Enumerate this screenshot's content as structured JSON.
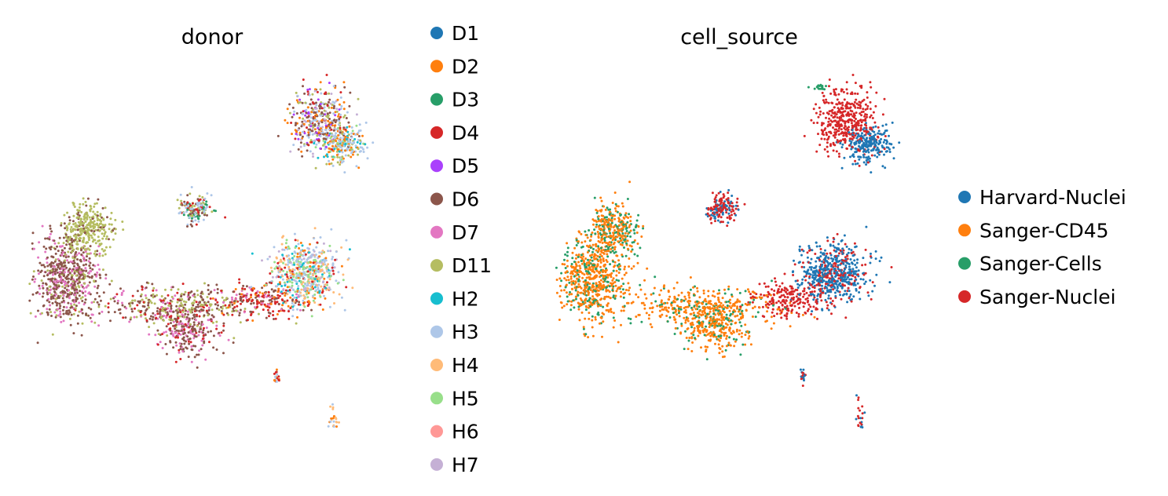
{
  "chart_data": [
    {
      "type": "scatter",
      "title": "donor",
      "xlabel": "",
      "ylabel": "",
      "axes_visible": false,
      "grid": false,
      "legend_placement": "right",
      "series": [
        {
          "name": "D1",
          "color": "#1f77b4"
        },
        {
          "name": "D2",
          "color": "#ff7f0e"
        },
        {
          "name": "D3",
          "color": "#279e68"
        },
        {
          "name": "D4",
          "color": "#d62728"
        },
        {
          "name": "D5",
          "color": "#aa40fc"
        },
        {
          "name": "D6",
          "color": "#8c564b"
        },
        {
          "name": "D7",
          "color": "#e377c2"
        },
        {
          "name": "D11",
          "color": "#b5bd61"
        },
        {
          "name": "H2",
          "color": "#17becf"
        },
        {
          "name": "H3",
          "color": "#aec7e8"
        },
        {
          "name": "H4",
          "color": "#ffbb78"
        },
        {
          "name": "H5",
          "color": "#98df8a"
        },
        {
          "name": "H6",
          "color": "#ff9896"
        },
        {
          "name": "H7",
          "color": "#c5b0d5"
        }
      ],
      "clusters": [
        {
          "id": "top",
          "x": 0.0,
          "y": 9.5,
          "sx": 0.45,
          "sy": 0.5,
          "weight": 900,
          "mix": {
            "D6": 3,
            "D2": 2,
            "D4": 1,
            "D5": 1,
            "H3": 2,
            "H7": 1,
            "D11": 1
          }
        },
        {
          "id": "top-right",
          "x": 0.6,
          "y": 8.8,
          "sx": 0.35,
          "sy": 0.25,
          "weight": 500,
          "mix": {
            "H3": 3,
            "D2": 2,
            "D11": 1,
            "H2": 1,
            "H5": 1
          }
        },
        {
          "id": "right-mid",
          "x": 3.9,
          "y": 7.1,
          "sx": 0.18,
          "sy": 0.25,
          "weight": 350,
          "mix": {
            "D5": 3,
            "D6": 2,
            "H3": 2,
            "D3": 1,
            "D4": 1
          }
        },
        {
          "id": "upper-mid",
          "x": -3.7,
          "y": 6.9,
          "sx": 0.25,
          "sy": 0.22,
          "weight": 350,
          "mix": {
            "D11": 2,
            "H3": 2,
            "D4": 1,
            "D6": 1,
            "D3": 1
          }
        },
        {
          "id": "left-a",
          "x": -6.9,
          "y": 6.3,
          "sx": 0.38,
          "sy": 0.35,
          "weight": 700,
          "mix": {
            "D11": 5,
            "D6": 1
          }
        },
        {
          "id": "left-b",
          "x": -7.5,
          "y": 4.8,
          "sx": 0.5,
          "sy": 0.6,
          "weight": 1400,
          "mix": {
            "D6": 6,
            "D7": 2,
            "D11": 1
          }
        },
        {
          "id": "bridge",
          "x": -4.2,
          "y": 4.0,
          "sx": 1.1,
          "sy": 0.3,
          "weight": 900,
          "mix": {
            "D6": 4,
            "D11": 3,
            "D7": 1,
            "D4": 1
          }
        },
        {
          "id": "down-arm",
          "x": -3.9,
          "y": 3.3,
          "sx": 0.45,
          "sy": 0.35,
          "weight": 500,
          "mix": {
            "D6": 3,
            "D7": 2,
            "D4": 1
          }
        },
        {
          "id": "mid-neck",
          "x": -1.7,
          "y": 4.2,
          "sx": 0.6,
          "sy": 0.25,
          "weight": 450,
          "mix": {
            "D4": 3,
            "D6": 2,
            "D7": 1,
            "D2": 1
          }
        },
        {
          "id": "mid-center",
          "x": -0.4,
          "y": 5.0,
          "sx": 0.5,
          "sy": 0.45,
          "weight": 1300,
          "mix": {
            "H3": 3,
            "H4": 2,
            "H5": 2,
            "H7": 1,
            "D2": 1,
            "H2": 1,
            "D4": 1
          }
        },
        {
          "id": "needle",
          "x": 4.2,
          "y": 3.1,
          "sx": 0.04,
          "sy": 0.3,
          "weight": 70,
          "mix": {
            "D3": 1
          }
        },
        {
          "id": "big-west",
          "x": 5.4,
          "y": 1.7,
          "sx": 0.6,
          "sy": 0.55,
          "weight": 1500,
          "mix": {
            "D5": 2,
            "D7": 2,
            "D4": 2,
            "D2": 2,
            "D6": 1
          }
        },
        {
          "id": "big-east",
          "x": 6.9,
          "y": 1.4,
          "sx": 0.7,
          "sy": 0.6,
          "weight": 2000,
          "mix": {
            "H5": 3,
            "H3": 3,
            "H4": 2,
            "H6": 2,
            "H7": 1,
            "H2": 1
          }
        },
        {
          "id": "big-tail",
          "x": 8.0,
          "y": 0.4,
          "sx": 0.25,
          "sy": 0.2,
          "weight": 180,
          "mix": {
            "D11": 2,
            "H6": 1
          }
        },
        {
          "id": "big-lower",
          "x": 6.3,
          "y": 0.2,
          "sx": 0.6,
          "sy": 0.35,
          "weight": 600,
          "mix": {
            "H6": 3,
            "H4": 2,
            "H3": 1
          }
        },
        {
          "id": "tiny",
          "x": -1.3,
          "y": 1.9,
          "sx": 0.05,
          "sy": 0.12,
          "weight": 40,
          "mix": {
            "D2": 1,
            "D4": 1,
            "H3": 1
          }
        },
        {
          "id": "small-mid",
          "x": -1.0,
          "y": -0.6,
          "sx": 0.55,
          "sy": 0.3,
          "weight": 400,
          "mix": {
            "D4": 2,
            "D2": 1,
            "H3": 2,
            "H2": 1,
            "D3": 1
          }
        },
        {
          "id": "small-tr",
          "x": 0.4,
          "y": 0.4,
          "sx": 0.08,
          "sy": 0.35,
          "weight": 100,
          "mix": {
            "H4": 1,
            "D2": 1,
            "H3": 1
          }
        },
        {
          "id": "bot-left-a",
          "x": -5.0,
          "y": -0.6,
          "sx": 0.3,
          "sy": 0.35,
          "weight": 350,
          "mix": {
            "D6": 3,
            "D7": 2,
            "D11": 1
          }
        },
        {
          "id": "bot-left-b",
          "x": -5.3,
          "y": -2.7,
          "sx": 0.35,
          "sy": 0.3,
          "weight": 400,
          "mix": {
            "D6": 3,
            "D7": 1,
            "D11": 1
          }
        },
        {
          "id": "bot-stem",
          "x": -5.4,
          "y": -1.6,
          "sx": 0.07,
          "sy": 0.45,
          "weight": 120,
          "mix": {
            "D6": 2,
            "D7": 1
          }
        }
      ]
    },
    {
      "type": "scatter",
      "title": "cell_source",
      "xlabel": "",
      "ylabel": "",
      "axes_visible": false,
      "grid": false,
      "legend_placement": "right",
      "series": [
        {
          "name": "Harvard-Nuclei",
          "color": "#1f77b4"
        },
        {
          "name": "Sanger-CD45",
          "color": "#ff7f0e"
        },
        {
          "name": "Sanger-Cells",
          "color": "#279e68"
        },
        {
          "name": "Sanger-Nuclei",
          "color": "#d62728"
        }
      ],
      "clusters": [
        {
          "id": "top",
          "x": 0.0,
          "y": 9.5,
          "sx": 0.45,
          "sy": 0.5,
          "weight": 900,
          "mix": {
            "Sanger-Nuclei": 1
          }
        },
        {
          "id": "top-right",
          "x": 0.6,
          "y": 8.8,
          "sx": 0.35,
          "sy": 0.25,
          "weight": 500,
          "mix": {
            "Harvard-Nuclei": 1
          }
        },
        {
          "id": "top-cap",
          "x": -0.7,
          "y": 10.5,
          "sx": 0.12,
          "sy": 0.05,
          "weight": 40,
          "mix": {
            "Sanger-Cells": 1
          }
        },
        {
          "id": "right-mid",
          "x": 3.9,
          "y": 7.1,
          "sx": 0.18,
          "sy": 0.25,
          "weight": 350,
          "mix": {
            "Sanger-Nuclei": 3,
            "Harvard-Nuclei": 1
          }
        },
        {
          "id": "upper-mid",
          "x": -3.7,
          "y": 6.9,
          "sx": 0.25,
          "sy": 0.22,
          "weight": 350,
          "mix": {
            "Sanger-Nuclei": 2,
            "Harvard-Nuclei": 1
          }
        },
        {
          "id": "left-a",
          "x": -6.9,
          "y": 6.3,
          "sx": 0.38,
          "sy": 0.35,
          "weight": 700,
          "mix": {
            "Sanger-CD45": 2,
            "Sanger-Cells": 1
          }
        },
        {
          "id": "left-b",
          "x": -7.5,
          "y": 4.8,
          "sx": 0.5,
          "sy": 0.6,
          "weight": 1400,
          "mix": {
            "Sanger-CD45": 3,
            "Sanger-Cells": 1
          }
        },
        {
          "id": "bridge",
          "x": -4.2,
          "y": 4.0,
          "sx": 1.1,
          "sy": 0.3,
          "weight": 900,
          "mix": {
            "Sanger-CD45": 4,
            "Sanger-Cells": 1
          }
        },
        {
          "id": "down-arm",
          "x": -3.9,
          "y": 3.3,
          "sx": 0.45,
          "sy": 0.35,
          "weight": 500,
          "mix": {
            "Sanger-CD45": 3,
            "Sanger-Cells": 1
          }
        },
        {
          "id": "mid-neck",
          "x": -1.7,
          "y": 4.2,
          "sx": 0.6,
          "sy": 0.25,
          "weight": 450,
          "mix": {
            "Sanger-Nuclei": 1
          }
        },
        {
          "id": "mid-center",
          "x": -0.4,
          "y": 5.0,
          "sx": 0.5,
          "sy": 0.45,
          "weight": 1300,
          "mix": {
            "Harvard-Nuclei": 3,
            "Sanger-Nuclei": 1
          }
        },
        {
          "id": "needle",
          "x": 4.2,
          "y": 3.1,
          "sx": 0.04,
          "sy": 0.3,
          "weight": 70,
          "mix": {
            "Sanger-Nuclei": 1
          }
        },
        {
          "id": "big-west",
          "x": 5.4,
          "y": 1.7,
          "sx": 0.6,
          "sy": 0.55,
          "weight": 1500,
          "mix": {
            "Sanger-Nuclei": 1
          }
        },
        {
          "id": "big-east",
          "x": 6.9,
          "y": 1.4,
          "sx": 0.7,
          "sy": 0.6,
          "weight": 2000,
          "mix": {
            "Harvard-Nuclei": 1
          }
        },
        {
          "id": "big-tail",
          "x": 8.0,
          "y": 0.4,
          "sx": 0.25,
          "sy": 0.2,
          "weight": 180,
          "mix": {
            "Sanger-Nuclei": 1
          }
        },
        {
          "id": "big-lower",
          "x": 6.3,
          "y": 0.2,
          "sx": 0.6,
          "sy": 0.35,
          "weight": 600,
          "mix": {
            "Harvard-Nuclei": 2,
            "Sanger-Nuclei": 1
          }
        },
        {
          "id": "tiny",
          "x": -1.3,
          "y": 1.9,
          "sx": 0.05,
          "sy": 0.12,
          "weight": 40,
          "mix": {
            "Sanger-Nuclei": 1,
            "Harvard-Nuclei": 1
          }
        },
        {
          "id": "small-mid",
          "x": -1.0,
          "y": -0.6,
          "sx": 0.55,
          "sy": 0.3,
          "weight": 400,
          "mix": {
            "Harvard-Nuclei": 2,
            "Sanger-Nuclei": 2
          }
        },
        {
          "id": "small-tr",
          "x": 0.4,
          "y": 0.4,
          "sx": 0.08,
          "sy": 0.35,
          "weight": 100,
          "mix": {
            "Harvard-Nuclei": 1,
            "Sanger-Nuclei": 1
          }
        },
        {
          "id": "bot-left-a",
          "x": -5.0,
          "y": -0.6,
          "sx": 0.3,
          "sy": 0.35,
          "weight": 350,
          "mix": {
            "Sanger-CD45": 1
          }
        },
        {
          "id": "bot-left-b",
          "x": -5.3,
          "y": -2.7,
          "sx": 0.35,
          "sy": 0.3,
          "weight": 400,
          "mix": {
            "Sanger-CD45": 1
          }
        },
        {
          "id": "bot-stem",
          "x": -5.4,
          "y": -1.6,
          "sx": 0.07,
          "sy": 0.45,
          "weight": 120,
          "mix": {
            "Sanger-CD45": 1
          }
        }
      ]
    }
  ]
}
